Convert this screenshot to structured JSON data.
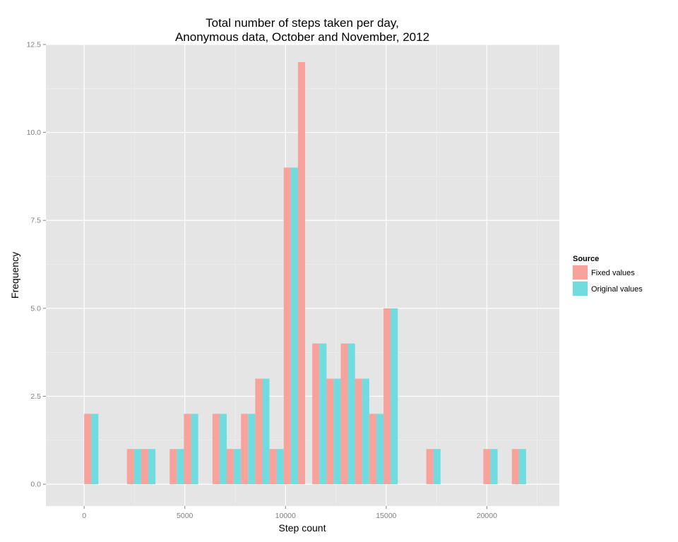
{
  "chart_data": {
    "type": "bar",
    "title_lines": [
      "Total number of steps taken per day,",
      "Anonymous data, October and November, 2012"
    ],
    "xlabel": "Step count",
    "ylabel": "Frequency",
    "xlim": [
      -1900,
      23600
    ],
    "ylim": [
      -0.62,
      12.5
    ],
    "bin_width": 708,
    "x_ticks": [
      0,
      5000,
      10000,
      15000,
      20000
    ],
    "x_tick_labels": [
      "0",
      "5000",
      "10000",
      "15000",
      "20000"
    ],
    "y_ticks": [
      0,
      2.5,
      5,
      7.5,
      10,
      12.5
    ],
    "y_tick_labels": [
      "0.0",
      "2.5",
      "5.0",
      "7.5",
      "10.0",
      "12.5"
    ],
    "grid": true,
    "legend": {
      "title": "Source",
      "position": "right"
    },
    "bin_starts": [
      0,
      2124,
      2832,
      4248,
      4956,
      6372,
      7080,
      7788,
      8496,
      9204,
      9912,
      10620,
      11328,
      12036,
      12744,
      13452,
      14160,
      14868,
      16992,
      19824,
      21240
    ],
    "series": [
      {
        "name": "Fixed values",
        "color": "#f8a29c",
        "values": [
          2,
          1,
          1,
          1,
          2,
          2,
          1,
          2,
          3,
          1,
          9,
          12,
          4,
          3,
          4,
          3,
          2,
          5,
          1,
          1,
          1
        ]
      },
      {
        "name": "Original values",
        "color": "#71dcdf",
        "values": [
          2,
          1,
          1,
          1,
          2,
          2,
          1,
          2,
          3,
          1,
          9,
          0,
          4,
          3,
          4,
          3,
          2,
          5,
          1,
          1,
          1
        ]
      }
    ]
  }
}
